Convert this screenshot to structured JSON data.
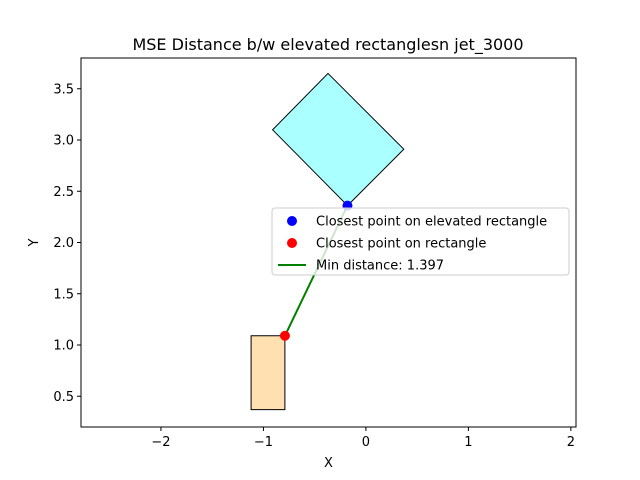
{
  "chart_data": {
    "type": "scatter",
    "title": "MSE Distance b/w elevated rectanglesn jet_3000",
    "xlabel": "X",
    "ylabel": "Y",
    "xlim": [
      -2.78,
      2.05
    ],
    "ylim": [
      0.2,
      3.8
    ],
    "xticks": [
      -2,
      -1,
      0,
      1,
      2
    ],
    "yticks": [
      0.5,
      1.0,
      1.5,
      2.0,
      2.5,
      3.0,
      3.5
    ],
    "xtick_labels": [
      "−2",
      "−1",
      "0",
      "1",
      "2"
    ],
    "ytick_labels": [
      "0.5",
      "1.0",
      "1.5",
      "2.0",
      "2.5",
      "3.0",
      "3.5"
    ],
    "grid": false,
    "legend_position": "center-right",
    "shapes": [
      {
        "name": "rectangle",
        "fill": "#ffe1b1",
        "edge": "#000000",
        "polygon": [
          [
            -1.12,
            0.37
          ],
          [
            -0.79,
            0.37
          ],
          [
            -0.79,
            1.09
          ],
          [
            -1.12,
            1.09
          ]
        ]
      },
      {
        "name": "elevated rectangle",
        "fill": "#aaffff",
        "edge": "#000000",
        "polygon": [
          [
            -0.18,
            2.36
          ],
          [
            0.37,
            2.91
          ],
          [
            -0.37,
            3.65
          ],
          [
            -0.91,
            3.1
          ]
        ]
      }
    ],
    "series": [
      {
        "name": "Closest point on elevated rectangle",
        "kind": "point",
        "color": "#0000ff",
        "x": [
          -0.18
        ],
        "y": [
          2.36
        ]
      },
      {
        "name": "Closest point on rectangle",
        "kind": "point",
        "color": "#ff0000",
        "x": [
          -0.79
        ],
        "y": [
          1.09
        ]
      },
      {
        "name": "Min distance: 1.397",
        "kind": "line",
        "color": "#008000",
        "x": [
          -0.79,
          -0.18
        ],
        "y": [
          1.09,
          2.36
        ]
      }
    ]
  }
}
